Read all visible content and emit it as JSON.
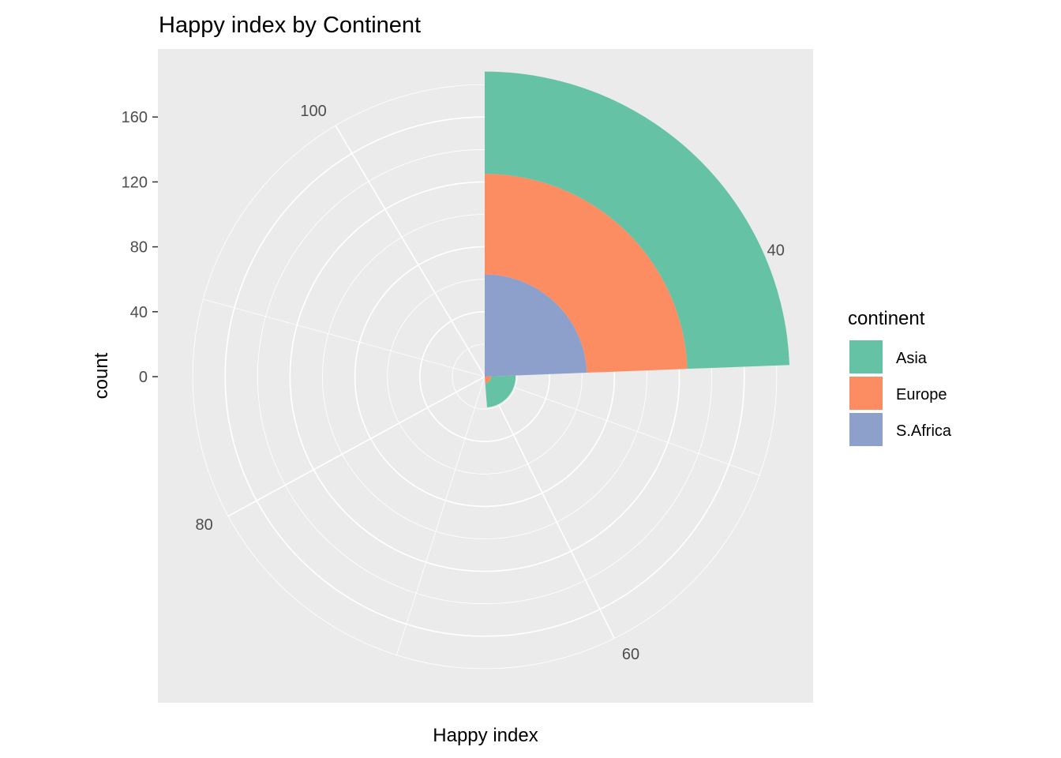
{
  "chart_data": {
    "type": "bar",
    "coord": "polar",
    "title": "Happy index by Continent",
    "xlabel": "Happy index",
    "ylabel": "count",
    "x_domain": [
      25,
      107
    ],
    "x_ticks": [
      40,
      60,
      80,
      100
    ],
    "y_ticks": [
      0,
      40,
      80,
      120,
      160
    ],
    "ylim": [
      0,
      160
    ],
    "stacked": true,
    "grid": true,
    "legend": {
      "title": "continent",
      "position": "right"
    },
    "bins": [
      {
        "x_range": [
          25,
          45
        ],
        "values": {
          "S.Africa": 63,
          "Europe": 62,
          "Asia": 63
        }
      },
      {
        "x_range": [
          45,
          65
        ],
        "values": {
          "S.Africa": 0,
          "Europe": 4,
          "Asia": 15
        }
      }
    ],
    "series": [
      {
        "name": "Asia",
        "color": "#66C2A5"
      },
      {
        "name": "Europe",
        "color": "#FC8D62"
      },
      {
        "name": "S.Africa",
        "color": "#8DA0CB"
      }
    ]
  }
}
